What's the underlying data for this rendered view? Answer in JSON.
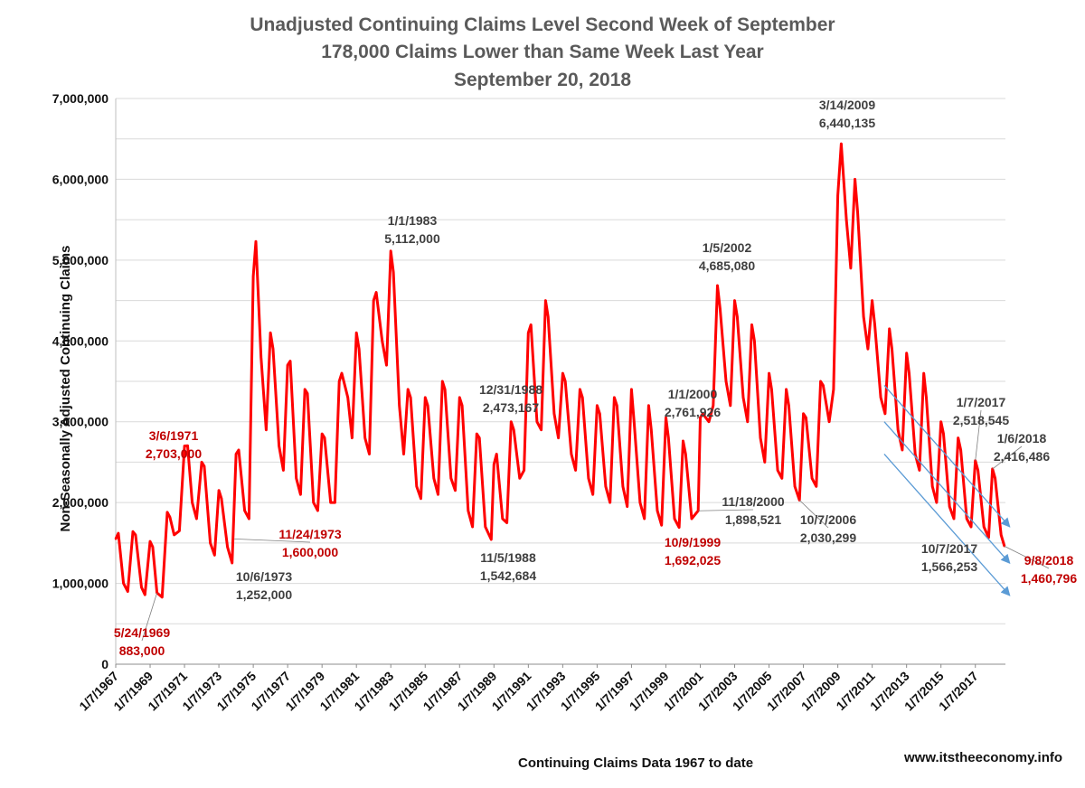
{
  "chart_data": {
    "type": "line",
    "title_lines": [
      "Unadjusted Continuing Claims Level  Second Week of September",
      "178,000 Claims Lower than Same Week Last Year",
      "September 20, 2018"
    ],
    "xlabel": "Continuing Claims Data 1967 to date",
    "ylabel": "Non-Seasonally Adjusted Continuing Claims",
    "source": "www.itstheeconomy.info",
    "ylim": [
      0,
      7000000
    ],
    "xlim": [
      1967.0,
      2018.75
    ],
    "yticks": [
      {
        "value": 0,
        "label": "0"
      },
      {
        "value": 1000000,
        "label": "1,000,000"
      },
      {
        "value": 2000000,
        "label": "2,000,000"
      },
      {
        "value": 3000000,
        "label": "3,000,000"
      },
      {
        "value": 4000000,
        "label": "4,000,000"
      },
      {
        "value": 5000000,
        "label": "5,000,000"
      },
      {
        "value": 6000000,
        "label": "6,000,000"
      },
      {
        "value": 7000000,
        "label": "7,000,000"
      }
    ],
    "xticks": [
      {
        "value": 1967.0,
        "label": "1/7/1967"
      },
      {
        "value": 1969.0,
        "label": "1/7/1969"
      },
      {
        "value": 1971.0,
        "label": "1/7/1971"
      },
      {
        "value": 1973.0,
        "label": "1/7/1973"
      },
      {
        "value": 1975.0,
        "label": "1/7/1975"
      },
      {
        "value": 1977.0,
        "label": "1/7/1977"
      },
      {
        "value": 1979.0,
        "label": "1/7/1979"
      },
      {
        "value": 1981.0,
        "label": "1/7/1981"
      },
      {
        "value": 1983.0,
        "label": "1/7/1983"
      },
      {
        "value": 1985.0,
        "label": "1/7/1985"
      },
      {
        "value": 1987.0,
        "label": "1/7/1987"
      },
      {
        "value": 1989.0,
        "label": "1/7/1989"
      },
      {
        "value": 1991.0,
        "label": "1/7/1991"
      },
      {
        "value": 1993.0,
        "label": "1/7/1993"
      },
      {
        "value": 1995.0,
        "label": "1/7/1995"
      },
      {
        "value": 1997.0,
        "label": "1/7/1997"
      },
      {
        "value": 1999.0,
        "label": "1/7/1999"
      },
      {
        "value": 2001.0,
        "label": "1/7/2001"
      },
      {
        "value": 2003.0,
        "label": "1/7/2003"
      },
      {
        "value": 2005.0,
        "label": "1/7/2005"
      },
      {
        "value": 2007.0,
        "label": "1/7/2007"
      },
      {
        "value": 2009.0,
        "label": "1/7/2009"
      },
      {
        "value": 2011.0,
        "label": "1/7/2011"
      },
      {
        "value": 2013.0,
        "label": "1/7/2013"
      },
      {
        "value": 2015.0,
        "label": "1/7/2015"
      },
      {
        "value": 2017.0,
        "label": "1/7/2017"
      }
    ],
    "series": [
      {
        "name": "Unadjusted Continuing Claims",
        "color": "#ff0000",
        "points": [
          [
            1967.0,
            1550000
          ],
          [
            1967.15,
            1620000
          ],
          [
            1967.45,
            1000000
          ],
          [
            1967.7,
            900000
          ],
          [
            1968.0,
            1640000
          ],
          [
            1968.15,
            1600000
          ],
          [
            1968.5,
            950000
          ],
          [
            1968.7,
            860000
          ],
          [
            1969.0,
            1520000
          ],
          [
            1969.15,
            1450000
          ],
          [
            1969.4,
            883000
          ],
          [
            1969.7,
            830000
          ],
          [
            1970.0,
            1880000
          ],
          [
            1970.15,
            1820000
          ],
          [
            1970.4,
            1600000
          ],
          [
            1970.7,
            1650000
          ],
          [
            1971.0,
            2700000
          ],
          [
            1971.18,
            2703000
          ],
          [
            1971.45,
            2000000
          ],
          [
            1971.7,
            1800000
          ],
          [
            1972.0,
            2500000
          ],
          [
            1972.15,
            2450000
          ],
          [
            1972.5,
            1500000
          ],
          [
            1972.75,
            1350000
          ],
          [
            1973.0,
            2150000
          ],
          [
            1973.15,
            2050000
          ],
          [
            1973.5,
            1450000
          ],
          [
            1973.77,
            1252000
          ],
          [
            1974.0,
            2600000
          ],
          [
            1974.15,
            2650000
          ],
          [
            1974.5,
            1900000
          ],
          [
            1974.75,
            1800000
          ],
          [
            1975.0,
            4800000
          ],
          [
            1975.15,
            5230000
          ],
          [
            1975.45,
            3800000
          ],
          [
            1975.75,
            2900000
          ],
          [
            1976.0,
            4100000
          ],
          [
            1976.15,
            3900000
          ],
          [
            1976.5,
            2700000
          ],
          [
            1976.75,
            2400000
          ],
          [
            1977.0,
            3700000
          ],
          [
            1977.15,
            3750000
          ],
          [
            1977.5,
            2300000
          ],
          [
            1977.75,
            2100000
          ],
          [
            1978.0,
            3400000
          ],
          [
            1978.15,
            3350000
          ],
          [
            1978.5,
            2000000
          ],
          [
            1978.75,
            1900000
          ],
          [
            1979.0,
            2850000
          ],
          [
            1979.15,
            2800000
          ],
          [
            1979.5,
            2000000
          ],
          [
            1979.75,
            2000000
          ],
          [
            1980.0,
            3500000
          ],
          [
            1980.15,
            3600000
          ],
          [
            1980.5,
            3300000
          ],
          [
            1980.75,
            2800000
          ],
          [
            1981.0,
            4100000
          ],
          [
            1981.15,
            3900000
          ],
          [
            1981.5,
            2800000
          ],
          [
            1981.75,
            2600000
          ],
          [
            1982.0,
            4500000
          ],
          [
            1982.15,
            4600000
          ],
          [
            1982.5,
            4000000
          ],
          [
            1982.75,
            3700000
          ],
          [
            1983.0,
            5112000
          ],
          [
            1983.15,
            4850000
          ],
          [
            1983.5,
            3200000
          ],
          [
            1983.75,
            2600000
          ],
          [
            1984.0,
            3400000
          ],
          [
            1984.15,
            3300000
          ],
          [
            1984.5,
            2200000
          ],
          [
            1984.75,
            2050000
          ],
          [
            1985.0,
            3300000
          ],
          [
            1985.15,
            3200000
          ],
          [
            1985.5,
            2300000
          ],
          [
            1985.75,
            2100000
          ],
          [
            1986.0,
            3500000
          ],
          [
            1986.15,
            3400000
          ],
          [
            1986.5,
            2300000
          ],
          [
            1986.75,
            2150000
          ],
          [
            1987.0,
            3300000
          ],
          [
            1987.15,
            3200000
          ],
          [
            1987.5,
            1900000
          ],
          [
            1987.75,
            1700000
          ],
          [
            1988.0,
            2850000
          ],
          [
            1988.15,
            2800000
          ],
          [
            1988.5,
            1700000
          ],
          [
            1988.84,
            1542684
          ],
          [
            1989.0,
            2473167
          ],
          [
            1989.15,
            2600000
          ],
          [
            1989.5,
            1800000
          ],
          [
            1989.75,
            1750000
          ],
          [
            1990.0,
            3000000
          ],
          [
            1990.15,
            2900000
          ],
          [
            1990.5,
            2300000
          ],
          [
            1990.75,
            2400000
          ],
          [
            1991.0,
            4100000
          ],
          [
            1991.15,
            4200000
          ],
          [
            1991.5,
            3000000
          ],
          [
            1991.75,
            2900000
          ],
          [
            1992.0,
            4500000
          ],
          [
            1992.15,
            4300000
          ],
          [
            1992.5,
            3100000
          ],
          [
            1992.75,
            2800000
          ],
          [
            1993.0,
            3600000
          ],
          [
            1993.15,
            3500000
          ],
          [
            1993.5,
            2600000
          ],
          [
            1993.75,
            2400000
          ],
          [
            1994.0,
            3400000
          ],
          [
            1994.15,
            3300000
          ],
          [
            1994.5,
            2300000
          ],
          [
            1994.75,
            2100000
          ],
          [
            1995.0,
            3200000
          ],
          [
            1995.15,
            3100000
          ],
          [
            1995.5,
            2200000
          ],
          [
            1995.75,
            2000000
          ],
          [
            1996.0,
            3300000
          ],
          [
            1996.15,
            3200000
          ],
          [
            1996.5,
            2200000
          ],
          [
            1996.75,
            1950000
          ],
          [
            1997.0,
            3400000
          ],
          [
            1997.15,
            3000000
          ],
          [
            1997.5,
            2000000
          ],
          [
            1997.75,
            1800000
          ],
          [
            1998.0,
            3200000
          ],
          [
            1998.15,
            2900000
          ],
          [
            1998.5,
            1900000
          ],
          [
            1998.75,
            1720000
          ],
          [
            1999.0,
            3050000
          ],
          [
            1999.15,
            2800000
          ],
          [
            1999.5,
            1800000
          ],
          [
            1999.77,
            1692025
          ],
          [
            2000.0,
            2761926
          ],
          [
            2000.15,
            2600000
          ],
          [
            2000.5,
            1800000
          ],
          [
            2000.88,
            1898521
          ],
          [
            2001.0,
            3050000
          ],
          [
            2001.15,
            3100000
          ],
          [
            2001.5,
            3000000
          ],
          [
            2001.75,
            3200000
          ],
          [
            2002.0,
            4685080
          ],
          [
            2002.15,
            4400000
          ],
          [
            2002.5,
            3500000
          ],
          [
            2002.75,
            3200000
          ],
          [
            2003.0,
            4500000
          ],
          [
            2003.15,
            4300000
          ],
          [
            2003.5,
            3300000
          ],
          [
            2003.75,
            3000000
          ],
          [
            2004.0,
            4200000
          ],
          [
            2004.15,
            4000000
          ],
          [
            2004.5,
            2800000
          ],
          [
            2004.75,
            2500000
          ],
          [
            2005.0,
            3600000
          ],
          [
            2005.15,
            3400000
          ],
          [
            2005.5,
            2400000
          ],
          [
            2005.75,
            2300000
          ],
          [
            2006.0,
            3400000
          ],
          [
            2006.15,
            3200000
          ],
          [
            2006.5,
            2200000
          ],
          [
            2006.77,
            2030299
          ],
          [
            2007.0,
            3100000
          ],
          [
            2007.15,
            3050000
          ],
          [
            2007.5,
            2300000
          ],
          [
            2007.75,
            2200000
          ],
          [
            2008.0,
            3500000
          ],
          [
            2008.15,
            3450000
          ],
          [
            2008.5,
            3000000
          ],
          [
            2008.75,
            3400000
          ],
          [
            2009.0,
            5800000
          ],
          [
            2009.2,
            6440135
          ],
          [
            2009.5,
            5500000
          ],
          [
            2009.75,
            4900000
          ],
          [
            2010.0,
            6000000
          ],
          [
            2010.15,
            5600000
          ],
          [
            2010.5,
            4300000
          ],
          [
            2010.75,
            3900000
          ],
          [
            2011.0,
            4500000
          ],
          [
            2011.15,
            4200000
          ],
          [
            2011.5,
            3300000
          ],
          [
            2011.75,
            3100000
          ],
          [
            2012.0,
            4150000
          ],
          [
            2012.15,
            3900000
          ],
          [
            2012.5,
            2900000
          ],
          [
            2012.75,
            2650000
          ],
          [
            2013.0,
            3850000
          ],
          [
            2013.15,
            3600000
          ],
          [
            2013.5,
            2600000
          ],
          [
            2013.75,
            2400000
          ],
          [
            2014.0,
            3600000
          ],
          [
            2014.15,
            3300000
          ],
          [
            2014.5,
            2200000
          ],
          [
            2014.75,
            2000000
          ],
          [
            2015.0,
            3000000
          ],
          [
            2015.15,
            2850000
          ],
          [
            2015.5,
            1950000
          ],
          [
            2015.75,
            1800000
          ],
          [
            2016.0,
            2800000
          ],
          [
            2016.15,
            2650000
          ],
          [
            2016.5,
            1800000
          ],
          [
            2016.75,
            1700000
          ],
          [
            2017.0,
            2518545
          ],
          [
            2017.15,
            2400000
          ],
          [
            2017.5,
            1700000
          ],
          [
            2017.77,
            1566253
          ],
          [
            2018.0,
            2416486
          ],
          [
            2018.15,
            2300000
          ],
          [
            2018.5,
            1600000
          ],
          [
            2018.69,
            1460796
          ]
        ]
      }
    ],
    "trend_lines": [
      {
        "name": "upper-trend",
        "color": "#5b9bd5",
        "from": [
          2011.7,
          3450000
        ],
        "to": [
          2019.0,
          1700000
        ]
      },
      {
        "name": "middle-trend",
        "color": "#5b9bd5",
        "from": [
          2011.7,
          3000000
        ],
        "to": [
          2019.0,
          1250000
        ]
      },
      {
        "name": "lower-trend",
        "color": "#5b9bd5",
        "from": [
          2011.7,
          2600000
        ],
        "to": [
          2019.0,
          850000
        ]
      }
    ],
    "annotations": [
      {
        "date": "5/24/1969",
        "value": "883,000",
        "color": "#c00000",
        "target": [
          1969.4,
          883000
        ]
      },
      {
        "date": "3/6/1971",
        "value": "2,703,000",
        "color": "#c00000",
        "target": null
      },
      {
        "date": "10/6/1973",
        "value": "1,252,000",
        "color": "#404040",
        "target": null
      },
      {
        "date": "11/24/1973",
        "value": "1,600,000",
        "color": "#c00000",
        "target": [
          1973.9,
          1550000
        ]
      },
      {
        "date": "1/1/1983",
        "value": "5,112,000",
        "color": "#404040",
        "target": null
      },
      {
        "date": "12/31/1988",
        "value": "2,473,167",
        "color": "#404040",
        "target": null
      },
      {
        "date": "11/5/1988",
        "value": "1,542,684",
        "color": "#404040",
        "target": null
      },
      {
        "date": "1/1/2000",
        "value": "2,761,926",
        "color": "#404040",
        "target": null
      },
      {
        "date": "10/9/1999",
        "value": "1,692,025",
        "color": "#c00000",
        "target": null
      },
      {
        "date": "11/18/2000",
        "value": "1,898,521",
        "color": "#404040",
        "target": [
          2000.88,
          1898521
        ]
      },
      {
        "date": "1/5/2002",
        "value": "4,685,080",
        "color": "#404040",
        "target": null
      },
      {
        "date": "10/7/2006",
        "value": "2,030,299",
        "color": "#404040",
        "target": [
          2006.77,
          2030299
        ]
      },
      {
        "date": "3/14/2009",
        "value": "6,440,135",
        "color": "#404040",
        "target": null
      },
      {
        "date": "1/7/2017",
        "value": "2,518,545",
        "color": "#404040",
        "target": [
          2017.0,
          2518545
        ]
      },
      {
        "date": "1/6/2018",
        "value": "2,416,486",
        "color": "#404040",
        "target": [
          2018.0,
          2416486
        ]
      },
      {
        "date": "10/7/2017",
        "value": "1,566,253",
        "color": "#404040",
        "target": null
      },
      {
        "date": "9/8/2018",
        "value": "1,460,796",
        "color": "#c00000",
        "target": [
          2018.69,
          1460796
        ]
      }
    ]
  }
}
